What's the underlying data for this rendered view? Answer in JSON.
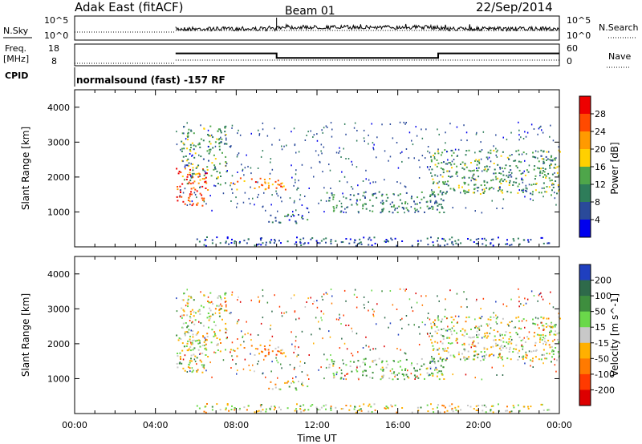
{
  "header": {
    "station": "Adak East (fitACF)",
    "beam": "Beam 01",
    "date": "22/Sep/2014"
  },
  "noise_panel": {
    "left_label": "N.Sky",
    "right_label": "N.Search",
    "left_ticks": [
      "10^5",
      "10^0"
    ],
    "right_ticks": [
      "10^5",
      "10^0"
    ]
  },
  "freq_panel": {
    "left_label_1": "Freq.",
    "left_label_2": "[MHz]",
    "left_ticks": [
      "18",
      "8"
    ],
    "right_label": "Nave",
    "right_ticks": [
      "60",
      "0"
    ],
    "cpid_label": "CPID",
    "cpid_text": "normalsound (fast) -157 RF"
  },
  "x_axis": {
    "label": "Time UT",
    "ticks": [
      "00:00",
      "04:00",
      "08:00",
      "12:00",
      "16:00",
      "20:00",
      "00:00"
    ]
  },
  "power_panel": {
    "ylabel": "Slant Range [km]",
    "y_ticks": [
      "1000",
      "2000",
      "3000",
      "4000"
    ],
    "colorbar_label": "Power [dB]",
    "colorbar_ticks": [
      "4",
      "8",
      "12",
      "16",
      "20",
      "24",
      "28"
    ],
    "colors": [
      "#0000ee",
      "#2a4a9a",
      "#2e7d5a",
      "#4ea64a",
      "#ffd000",
      "#ff9a00",
      "#ff4a00",
      "#ee0000"
    ]
  },
  "velocity_panel": {
    "ylabel": "Slant Range [km]",
    "y_ticks": [
      "1000",
      "2000",
      "3000",
      "4000"
    ],
    "colorbar_label": "Velocity [m s^-1]",
    "colorbar_ticks": [
      "200",
      "100",
      "50",
      "15",
      "-15",
      "-50",
      "-100",
      "-200"
    ],
    "colors": [
      "#1f3fbf",
      "#2e6a4a",
      "#3e8e3e",
      "#6ad84a",
      "#c8c8c8",
      "#ffb000",
      "#ff7a00",
      "#ff3a00",
      "#dd0000"
    ]
  },
  "chart_data": {
    "type": "heatmap",
    "title": "Adak East (fitACF) Beam 01 22/Sep/2014",
    "xlabel": "Time UT",
    "ylabel": "Slant Range [km]",
    "x_range_hours": [
      0,
      24
    ],
    "y_range_km": [
      0,
      4500
    ],
    "freq_mhz_segments": [
      {
        "start_h": 0,
        "end_h": 5,
        "value": null
      },
      {
        "start_h": 5,
        "end_h": 10,
        "value": 14
      },
      {
        "start_h": 10,
        "end_h": 18,
        "value": 11
      },
      {
        "start_h": 18,
        "end_h": 24,
        "value": 14
      }
    ],
    "data_start_h": 5,
    "power_scale_db": [
      0,
      30
    ],
    "velocity_scale": [
      -250,
      250
    ],
    "echo_regions": [
      {
        "name": "early-strong",
        "t0": 5.0,
        "t1": 6.6,
        "r0": 1200,
        "r1": 2300,
        "power": 26,
        "velocity": 0
      },
      {
        "name": "early-tall",
        "t0": 5.2,
        "t1": 7.5,
        "r0": 1800,
        "r1": 3500,
        "power": 12,
        "velocity": 0
      },
      {
        "name": "band-a",
        "t0": 7.6,
        "t1": 10.5,
        "r0": 1650,
        "r1": 2000,
        "power": 22,
        "velocity": -60
      },
      {
        "name": "band-b",
        "t0": 9.5,
        "t1": 11.6,
        "r0": 700,
        "r1": 1000,
        "power": 8,
        "velocity": 0
      },
      {
        "name": "band-c",
        "t0": 12.4,
        "t1": 18.3,
        "r0": 1000,
        "r1": 1600,
        "power": 10,
        "velocity": 40
      },
      {
        "name": "late-wide",
        "t0": 17.6,
        "t1": 24.0,
        "r0": 1500,
        "r1": 2800,
        "power": 12,
        "velocity": 0
      },
      {
        "name": "ground-strip",
        "t0": 6.0,
        "t1": 24.0,
        "r0": 50,
        "r1": 300,
        "power": 6,
        "velocity": 0
      }
    ]
  }
}
